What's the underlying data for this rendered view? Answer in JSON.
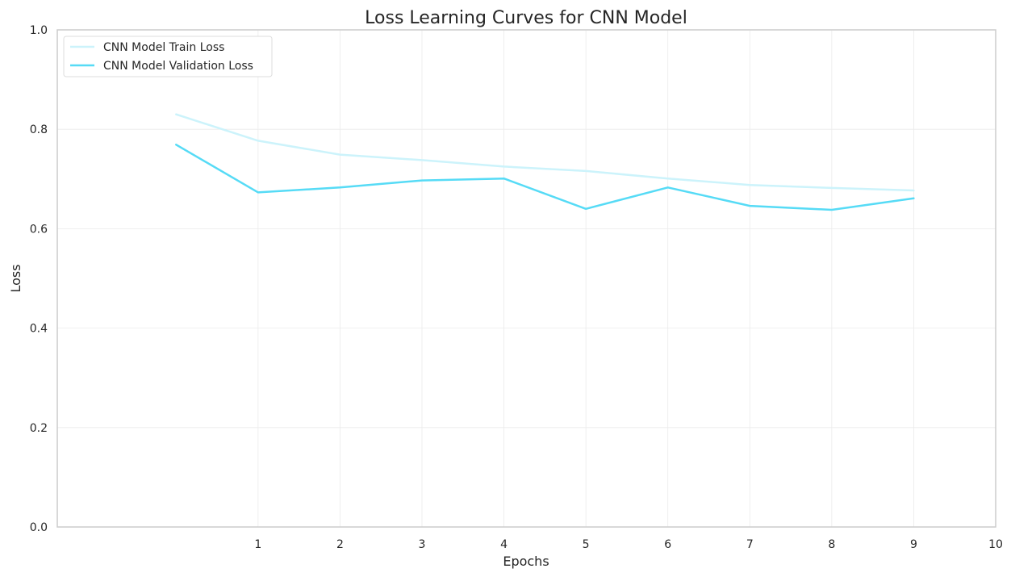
{
  "chart_data": {
    "type": "line",
    "title": "Loss Learning Curves for CNN Model",
    "xlabel": "Epochs",
    "ylabel": "Loss",
    "xlim": [
      -1.45,
      10
    ],
    "ylim": [
      0.0,
      1.0
    ],
    "xticks": [
      1,
      2,
      3,
      4,
      5,
      6,
      7,
      8,
      9,
      10
    ],
    "yticks": [
      0.0,
      0.2,
      0.4,
      0.6,
      0.8,
      1.0
    ],
    "grid": true,
    "legend_position": "top-left",
    "x": [
      0,
      1,
      2,
      3,
      4,
      5,
      6,
      7,
      8,
      9
    ],
    "series": [
      {
        "name": "CNN Model Train Loss",
        "color": "#ccf3fb",
        "values": [
          0.83,
          0.777,
          0.749,
          0.738,
          0.725,
          0.716,
          0.701,
          0.688,
          0.682,
          0.677
        ]
      },
      {
        "name": "CNN Model Validation Loss",
        "color": "#56dbf6",
        "values": [
          0.769,
          0.673,
          0.683,
          0.697,
          0.701,
          0.64,
          0.683,
          0.646,
          0.638,
          0.661
        ]
      }
    ]
  }
}
